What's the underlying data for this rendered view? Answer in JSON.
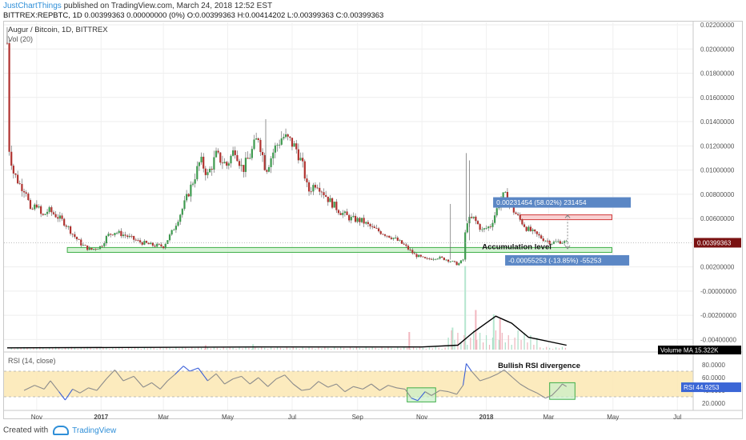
{
  "header": {
    "author": "JustChartThings",
    "published": "published on TradingView.com, March 24, 2018 12:52 EST",
    "symbol_line": "BITTREX:REPBTC, 1D  0.00399363 0.00000000 (0%) O:0.00399363 H:0.00414202 L:0.00399363 C:0.00399363"
  },
  "footer": {
    "created_with": "Created with",
    "brand": "TradingView"
  },
  "chart_data": {
    "type": "candlestick",
    "title": "Augur / Bitcoin, 1D, BITTREX",
    "volume_label": "Vol (20)",
    "x_ticks": [
      "Nov",
      "2017",
      "Mar",
      "May",
      "Jul",
      "Sep",
      "Nov",
      "2018",
      "Mar",
      "May",
      "Jul"
    ],
    "y_ticks": [
      "0.02200000",
      "0.02000000",
      "0.01800000",
      "0.01600000",
      "0.01400000",
      "0.01200000",
      "0.01000000",
      "0.00800000",
      "0.00600000",
      "0.00200000",
      "-0.00000000",
      "-0.00200000",
      "-0.00400000"
    ],
    "ylim": [
      -0.0049,
      0.0222
    ],
    "last_price": "0.00399363",
    "price_path": [
      [
        "2016-10-04",
        0.0205
      ],
      [
        "2016-10-06",
        0.0118
      ],
      [
        "2016-10-10",
        0.0098
      ],
      [
        "2016-10-16",
        0.0088
      ],
      [
        "2016-10-22",
        0.0083
      ],
      [
        "2016-10-26",
        0.0065
      ],
      [
        "2016-11-01",
        0.0072
      ],
      [
        "2016-11-06",
        0.0061
      ],
      [
        "2016-11-12",
        0.0067
      ],
      [
        "2016-11-20",
        0.0062
      ],
      [
        "2016-11-28",
        0.0056
      ],
      [
        "2016-12-06",
        0.0046
      ],
      [
        "2016-12-14",
        0.0038
      ],
      [
        "2016-12-22",
        0.0034
      ],
      [
        "2017-01-01",
        0.0037
      ],
      [
        "2017-01-07",
        0.0046
      ],
      [
        "2017-01-14",
        0.0049
      ],
      [
        "2017-01-24",
        0.0046
      ],
      [
        "2017-02-05",
        0.0041
      ],
      [
        "2017-02-18",
        0.0038
      ],
      [
        "2017-03-01",
        0.0037
      ],
      [
        "2017-03-10",
        0.005
      ],
      [
        "2017-03-20",
        0.007
      ],
      [
        "2017-03-30",
        0.0093
      ],
      [
        "2017-04-05",
        0.0108
      ],
      [
        "2017-04-12",
        0.0096
      ],
      [
        "2017-04-20",
        0.0112
      ],
      [
        "2017-04-30",
        0.0104
      ],
      [
        "2017-05-08",
        0.0118
      ],
      [
        "2017-05-15",
        0.01
      ],
      [
        "2017-05-22",
        0.0112
      ],
      [
        "2017-05-30",
        0.0128
      ],
      [
        "2017-06-06",
        0.01
      ],
      [
        "2017-06-14",
        0.0117
      ],
      [
        "2017-06-22",
        0.0128
      ],
      [
        "2017-06-30",
        0.0123
      ],
      [
        "2017-07-06",
        0.0116
      ],
      [
        "2017-07-12",
        0.01
      ],
      [
        "2017-07-16",
        0.0082
      ],
      [
        "2017-07-24",
        0.009
      ],
      [
        "2017-08-05",
        0.0075
      ],
      [
        "2017-08-15",
        0.0066
      ],
      [
        "2017-08-25",
        0.006
      ],
      [
        "2017-09-05",
        0.0058
      ],
      [
        "2017-09-15",
        0.0052
      ],
      [
        "2017-09-25",
        0.0048
      ],
      [
        "2017-10-05",
        0.0044
      ],
      [
        "2017-10-15",
        0.0038
      ],
      [
        "2017-10-25",
        0.003
      ],
      [
        "2017-11-05",
        0.0026
      ],
      [
        "2017-11-15",
        0.0028
      ],
      [
        "2017-11-25",
        0.0026
      ],
      [
        "2017-12-05",
        0.0022
      ],
      [
        "2017-12-10",
        0.0026
      ],
      [
        "2017-12-13",
        0.0058
      ],
      [
        "2017-12-20",
        0.006
      ],
      [
        "2017-12-28",
        0.005
      ],
      [
        "2018-01-05",
        0.0054
      ],
      [
        "2018-01-12",
        0.007
      ],
      [
        "2018-01-18",
        0.008
      ],
      [
        "2018-01-24",
        0.007
      ],
      [
        "2018-02-01",
        0.006
      ],
      [
        "2018-02-08",
        0.0052
      ],
      [
        "2018-02-15",
        0.0048
      ],
      [
        "2018-02-24",
        0.0043
      ],
      [
        "2018-03-04",
        0.004
      ],
      [
        "2018-03-12",
        0.0041
      ],
      [
        "2018-03-18",
        0.004
      ]
    ],
    "accumulation_zone": {
      "label": "Accumulation level",
      "from": "2016-11-30",
      "to": "2018-04-30",
      "low": 0.0032,
      "high": 0.0036
    },
    "target_zone": {
      "from": "2018-02-02",
      "to": "2018-04-30",
      "low": 0.0059,
      "high": 0.0063
    },
    "measure_up": {
      "label": "0.00231454 (58.02%) 231454",
      "from": 0.004,
      "to": 0.0063,
      "date": "2018-03-19"
    },
    "measure_down": {
      "label": "-0.00055253 (-13.85%) -55253",
      "from": 0.004,
      "to": 0.0035,
      "date": "2018-03-19"
    },
    "volume_ma_label": "Volume MA",
    "volume_ma_value": "15.322K",
    "volume_ma_path": [
      [
        "2016-10-04",
        0.02
      ],
      [
        "2017-06-01",
        0.03
      ],
      [
        "2017-11-01",
        0.03
      ],
      [
        "2017-12-05",
        0.05
      ],
      [
        "2017-12-20",
        0.2
      ],
      [
        "2018-01-10",
        0.38
      ],
      [
        "2018-01-25",
        0.3
      ],
      [
        "2018-02-10",
        0.14
      ],
      [
        "2018-03-18",
        0.05
      ]
    ],
    "volume_spikes": [
      [
        "2017-12-12",
        0.95
      ],
      [
        "2017-12-22",
        0.45
      ],
      [
        "2018-01-08",
        0.4
      ],
      [
        "2018-01-14",
        0.35
      ],
      [
        "2017-11-30",
        0.25
      ],
      [
        "2017-10-20",
        0.2
      ],
      [
        "2017-05-25",
        0.06
      ],
      [
        "2017-04-10",
        0.05
      ]
    ],
    "rsi": {
      "label": "RSI (14, close)",
      "current": "44.9253",
      "current_value": 44.93,
      "y_ticks": [
        "80.0000",
        "60.0000",
        "40.0000",
        "20.0000"
      ],
      "ylim": [
        10,
        95
      ],
      "band": [
        30,
        70
      ],
      "annotation": "Bullish RSI divergence",
      "divergence_boxes": [
        {
          "from": "2017-10-18",
          "to": "2017-11-14",
          "low": 22,
          "high": 44
        },
        {
          "from": "2018-03-02",
          "to": "2018-03-26",
          "low": 26,
          "high": 52
        }
      ],
      "path": [
        [
          "2016-10-20",
          40
        ],
        [
          "2016-10-30",
          48
        ],
        [
          "2016-11-08",
          42
        ],
        [
          "2016-11-14",
          55
        ],
        [
          "2016-11-22",
          38
        ],
        [
          "2016-11-28",
          25
        ],
        [
          "2016-12-05",
          42
        ],
        [
          "2016-12-12",
          36
        ],
        [
          "2016-12-20",
          44
        ],
        [
          "2016-12-28",
          40
        ],
        [
          "2017-01-06",
          58
        ],
        [
          "2017-01-14",
          72
        ],
        [
          "2017-01-22",
          55
        ],
        [
          "2017-02-01",
          62
        ],
        [
          "2017-02-10",
          45
        ],
        [
          "2017-02-18",
          52
        ],
        [
          "2017-02-26",
          42
        ],
        [
          "2017-03-05",
          55
        ],
        [
          "2017-03-12",
          65
        ],
        [
          "2017-03-20",
          78
        ],
        [
          "2017-03-26",
          70
        ],
        [
          "2017-04-03",
          75
        ],
        [
          "2017-04-12",
          55
        ],
        [
          "2017-04-20",
          66
        ],
        [
          "2017-04-28",
          50
        ],
        [
          "2017-05-06",
          58
        ],
        [
          "2017-05-14",
          62
        ],
        [
          "2017-05-22",
          50
        ],
        [
          "2017-05-30",
          60
        ],
        [
          "2017-06-08",
          46
        ],
        [
          "2017-06-16",
          58
        ],
        [
          "2017-06-24",
          64
        ],
        [
          "2017-07-02",
          50
        ],
        [
          "2017-07-10",
          40
        ],
        [
          "2017-07-18",
          42
        ],
        [
          "2017-07-26",
          54
        ],
        [
          "2017-08-04",
          45
        ],
        [
          "2017-08-12",
          50
        ],
        [
          "2017-08-20",
          38
        ],
        [
          "2017-08-28",
          46
        ],
        [
          "2017-09-06",
          42
        ],
        [
          "2017-09-14",
          50
        ],
        [
          "2017-09-22",
          40
        ],
        [
          "2017-09-30",
          48
        ],
        [
          "2017-10-08",
          44
        ],
        [
          "2017-10-16",
          42
        ],
        [
          "2017-10-22",
          28
        ],
        [
          "2017-10-28",
          24
        ],
        [
          "2017-11-04",
          38
        ],
        [
          "2017-11-10",
          32
        ],
        [
          "2017-11-18",
          40
        ],
        [
          "2017-11-26",
          38
        ],
        [
          "2017-12-04",
          34
        ],
        [
          "2017-12-10",
          48
        ],
        [
          "2017-12-13",
          82
        ],
        [
          "2017-12-18",
          70
        ],
        [
          "2017-12-26",
          55
        ],
        [
          "2018-01-04",
          60
        ],
        [
          "2018-01-12",
          66
        ],
        [
          "2018-01-18",
          72
        ],
        [
          "2018-01-26",
          60
        ],
        [
          "2018-02-02",
          50
        ],
        [
          "2018-02-10",
          42
        ],
        [
          "2018-02-18",
          36
        ],
        [
          "2018-02-26",
          28
        ],
        [
          "2018-03-04",
          32
        ],
        [
          "2018-03-10",
          42
        ],
        [
          "2018-03-14",
          50
        ],
        [
          "2018-03-18",
          46
        ]
      ]
    }
  }
}
